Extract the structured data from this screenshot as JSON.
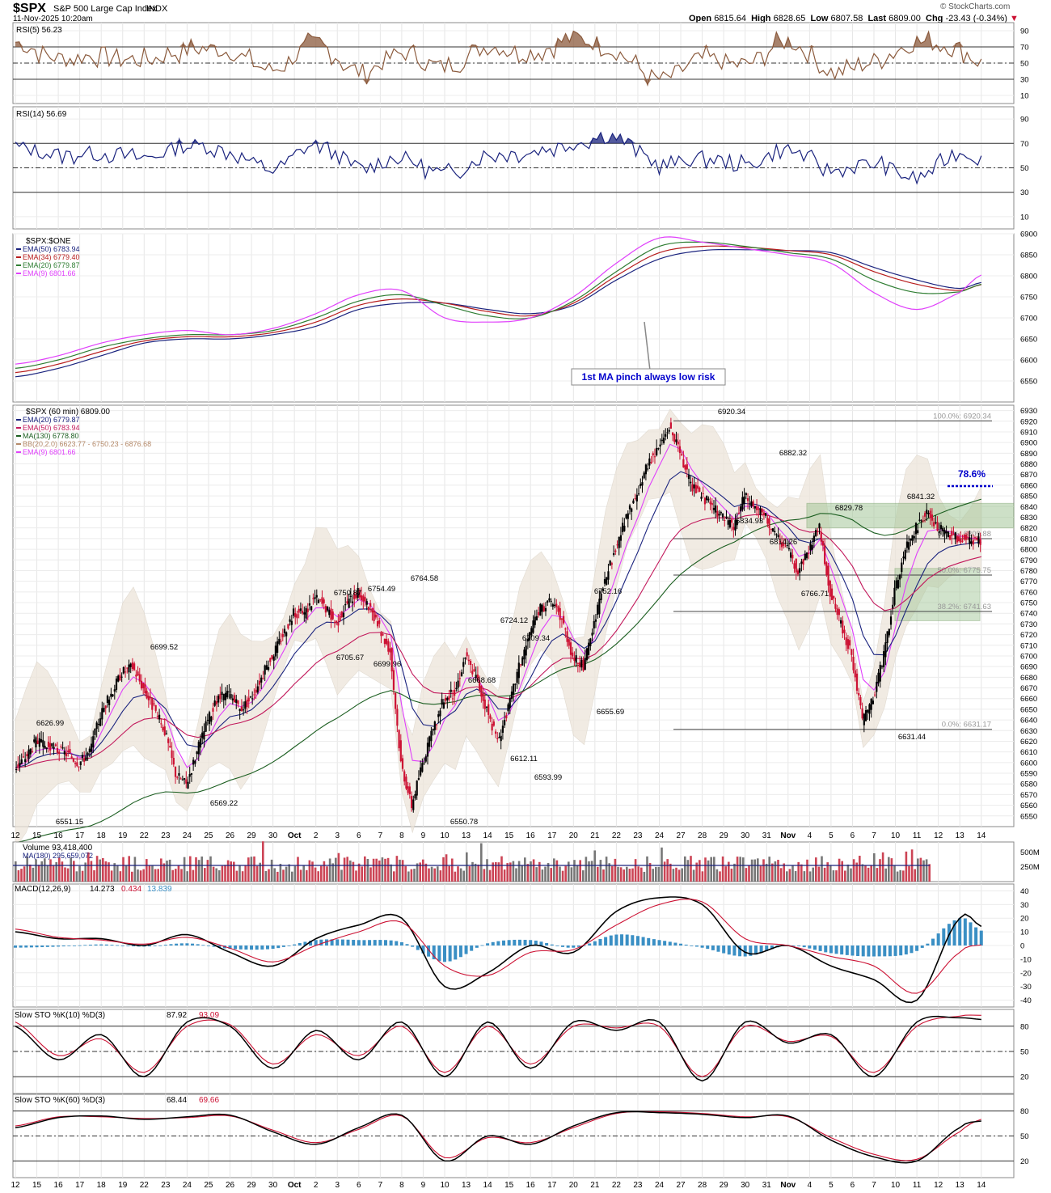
{
  "header": {
    "symbol": "$SPX",
    "name": "S&P 500 Large Cap Index",
    "exchange": "INDX",
    "date": "11-Nov-2025 10:20am",
    "brand": "© StockCharts.com",
    "open_label": "Open",
    "open": "6815.64",
    "high_label": "High",
    "high": "6828.65",
    "low_label": "Low",
    "low": "6807.58",
    "last_label": "Last",
    "last": "6809.00",
    "chg_label": "Chg",
    "chg": "-23.43 (-0.34%)"
  },
  "colors": {
    "candle_up": "#000000",
    "candle_down": "#cc1133",
    "ema20": "#1a237e",
    "ema50": "#c2185b",
    "ma130": "#1b5e20",
    "ema9": "#e040fb",
    "ema34": "#b71c1c",
    "ema20_green": "#2e7d32",
    "rsi5": "#8b5a3c",
    "rsi14": "#1a237e",
    "macd_hist": "#3a8fc4",
    "bb_fill": "#ede5da",
    "fib_box": "#a5c89a",
    "fib_text": "#999999",
    "annotation": "#0000cc"
  },
  "x_labels": [
    "12",
    "15",
    "16",
    "17",
    "18",
    "19",
    "22",
    "23",
    "24",
    "25",
    "26",
    "29",
    "30",
    "Oct",
    "2",
    "3",
    "6",
    "7",
    "8",
    "9",
    "10",
    "13",
    "14",
    "15",
    "16",
    "17",
    "20",
    "21",
    "22",
    "23",
    "24",
    "27",
    "28",
    "29",
    "30",
    "31",
    "Nov",
    "4",
    "5",
    "6",
    "7",
    "10",
    "11",
    "12",
    "13",
    "14"
  ],
  "chart_data": [
    {
      "type": "line",
      "title": "RSI(5)",
      "value": "56.23",
      "ylim": [
        0,
        100
      ],
      "ticks": [
        10,
        30,
        50,
        70,
        90
      ],
      "reference_lines": [
        30,
        50,
        70
      ],
      "x": [
        0,
        2,
        4,
        6,
        8,
        10,
        12,
        14,
        16,
        18,
        20,
        22,
        24,
        26,
        28,
        30,
        32,
        34,
        36,
        38,
        40,
        42,
        44,
        45
      ],
      "values": [
        76,
        56,
        60,
        53,
        66,
        64,
        42,
        74,
        39,
        62,
        45,
        70,
        62,
        80,
        64,
        30,
        55,
        48,
        76,
        40,
        53,
        75,
        68,
        50
      ]
    },
    {
      "type": "line",
      "title": "RSI(14)",
      "value": "56.69",
      "ylim": [
        0,
        100
      ],
      "ticks": [
        10,
        30,
        50,
        70,
        90
      ],
      "reference_lines": [
        30,
        50,
        70
      ],
      "x": [
        0,
        2,
        4,
        6,
        8,
        10,
        12,
        14,
        16,
        18,
        20,
        22,
        24,
        26,
        28,
        30,
        32,
        34,
        36,
        38,
        40,
        42,
        44,
        45
      ],
      "values": [
        67,
        61,
        62,
        58,
        68,
        63,
        49,
        69,
        50,
        58,
        45,
        60,
        63,
        70,
        75,
        53,
        58,
        52,
        64,
        48,
        53,
        42,
        62,
        57
      ]
    },
    {
      "type": "line",
      "title": "$SPX:$ONE",
      "ylim": [
        6500,
        6900
      ],
      "ticks": [
        6550,
        6600,
        6650,
        6700,
        6750,
        6800,
        6850,
        6900
      ],
      "x": [
        0,
        2,
        4,
        6,
        8,
        10,
        12,
        14,
        16,
        18,
        20,
        22,
        24,
        26,
        28,
        30,
        32,
        34,
        36,
        38,
        40,
        42,
        44,
        45
      ],
      "series": [
        {
          "name": "EMA(50)",
          "value": "6783.94",
          "values": [
            6560,
            6580,
            6610,
            6640,
            6650,
            6650,
            6660,
            6680,
            6720,
            6735,
            6735,
            6720,
            6710,
            6730,
            6790,
            6840,
            6860,
            6862,
            6860,
            6855,
            6820,
            6790,
            6770,
            6784
          ]
        },
        {
          "name": "EMA(34)",
          "value": "6779.40",
          "values": [
            6570,
            6590,
            6620,
            6645,
            6655,
            6655,
            6665,
            6690,
            6730,
            6745,
            6735,
            6715,
            6705,
            6735,
            6800,
            6855,
            6870,
            6868,
            6860,
            6850,
            6810,
            6780,
            6765,
            6779
          ]
        },
        {
          "name": "EMA(20)",
          "value": "6779.87",
          "values": [
            6580,
            6600,
            6630,
            6650,
            6660,
            6660,
            6670,
            6700,
            6740,
            6755,
            6730,
            6705,
            6700,
            6740,
            6810,
            6870,
            6880,
            6870,
            6855,
            6840,
            6790,
            6760,
            6762,
            6780
          ]
        },
        {
          "name": "EMA(9)",
          "value": "6801.66",
          "values": [
            6590,
            6610,
            6640,
            6660,
            6670,
            6660,
            6675,
            6710,
            6755,
            6765,
            6700,
            6690,
            6700,
            6750,
            6830,
            6890,
            6880,
            6865,
            6850,
            6830,
            6760,
            6720,
            6760,
            6802
          ]
        }
      ],
      "annotation": "1st MA pinch always low risk"
    },
    {
      "type": "candlestick",
      "title": "$SPX (60 min)",
      "value": "6809.00",
      "ylim": [
        6540,
        6935
      ],
      "ticks": [
        6550,
        6560,
        6570,
        6580,
        6590,
        6600,
        6610,
        6620,
        6630,
        6640,
        6650,
        6660,
        6670,
        6680,
        6690,
        6700,
        6710,
        6720,
        6730,
        6740,
        6750,
        6760,
        6770,
        6780,
        6790,
        6800,
        6810,
        6820,
        6830,
        6840,
        6850,
        6860,
        6870,
        6880,
        6890,
        6900,
        6910,
        6920,
        6930
      ],
      "legend": [
        {
          "name": "EMA(20)",
          "value": "6779.87"
        },
        {
          "name": "EMA(50)",
          "value": "6783.94"
        },
        {
          "name": "MA(130)",
          "value": "6778.80"
        },
        {
          "name": "BB(20,2.0)",
          "value": "6623.77 - 6750.23 - 6876.68"
        },
        {
          "name": "EMA(9)",
          "value": "6801.66"
        }
      ],
      "x": [
        0,
        0.5,
        1,
        1.5,
        2,
        2.5,
        3,
        3.5,
        4,
        4.5,
        5,
        5.5,
        6,
        6.5,
        7,
        7.5,
        8,
        8.5,
        9,
        9.5,
        10,
        10.5,
        11,
        11.5,
        12,
        12.5,
        13,
        13.5,
        14,
        14.5,
        15,
        15.5,
        16,
        16.5,
        17,
        17.5,
        18,
        18.5,
        19,
        19.5,
        20,
        20.5,
        21,
        21.5,
        22,
        22.5,
        23,
        23.5,
        24,
        24.5,
        25,
        25.5,
        26,
        26.5,
        27,
        27.5,
        28,
        28.5,
        29,
        29.5,
        30,
        30.5,
        31,
        31.5,
        32,
        32.5,
        33,
        33.5,
        34,
        34.5,
        35,
        35.5,
        36,
        36.5,
        37,
        37.5,
        38,
        38.5,
        39,
        39.5,
        40,
        40.5,
        41,
        41.5,
        42,
        42.5,
        43,
        43.5,
        44,
        44.5,
        45
      ],
      "close": [
        6595,
        6605,
        6620,
        6615,
        6612,
        6608,
        6600,
        6610,
        6645,
        6665,
        6685,
        6690,
        6670,
        6650,
        6630,
        6590,
        6580,
        6610,
        6640,
        6660,
        6665,
        6650,
        6660,
        6680,
        6700,
        6720,
        6740,
        6740,
        6755,
        6745,
        6730,
        6750,
        6760,
        6745,
        6725,
        6705,
        6600,
        6560,
        6600,
        6630,
        6660,
        6665,
        6700,
        6680,
        6650,
        6620,
        6650,
        6690,
        6720,
        6745,
        6750,
        6735,
        6700,
        6690,
        6730,
        6770,
        6800,
        6830,
        6850,
        6880,
        6895,
        6915,
        6890,
        6860,
        6850,
        6840,
        6830,
        6820,
        6850,
        6840,
        6830,
        6810,
        6800,
        6780,
        6800,
        6820,
        6760,
        6730,
        6700,
        6640,
        6660,
        6700,
        6760,
        6800,
        6820,
        6834,
        6820,
        6815,
        6809,
        6809,
        6809
      ],
      "highs": [
        {
          "label": "6626.99"
        },
        {
          "label": "6699.52"
        },
        {
          "label": "6750.87"
        },
        {
          "label": "6754.49"
        },
        {
          "label": "6764.58"
        },
        {
          "label": "6724.12"
        },
        {
          "label": "6709.34"
        },
        {
          "label": "6752.16"
        },
        {
          "label": "6920.34"
        },
        {
          "label": "6882.32"
        },
        {
          "label": "6829.78"
        },
        {
          "label": "6841.32"
        }
      ],
      "lows": [
        {
          "label": "6551.15"
        },
        {
          "label": "6569.22"
        },
        {
          "label": "6705.67"
        },
        {
          "label": "6699.96"
        },
        {
          "label": "6550.78"
        },
        {
          "label": "6668.68"
        },
        {
          "label": "6612.11"
        },
        {
          "label": "6593.99"
        },
        {
          "label": "6655.69"
        },
        {
          "label": "6834.93"
        },
        {
          "label": "6814.26"
        },
        {
          "label": "6766.71"
        },
        {
          "label": "6631.44"
        }
      ],
      "fib": [
        {
          "label": "100.0%: 6920.34",
          "value": 6920.34
        },
        {
          "label": "61.8%: 6809.88",
          "value": 6809.88
        },
        {
          "label": "50.0%: 6775.75",
          "value": 6775.75
        },
        {
          "label": "38.2%: 6741.63",
          "value": 6741.63
        },
        {
          "label": "0.0%: 6631.17",
          "value": 6631.17
        }
      ],
      "fib_target": "78.6%"
    },
    {
      "type": "bar",
      "title": "Volume",
      "value": "93,418,400",
      "ma_label": "MA(180)",
      "ma_value": "295,659,072",
      "ticks": [
        "250M",
        "500M"
      ]
    },
    {
      "type": "line",
      "title": "MACD(12,26,9)",
      "values_text": [
        "14.273",
        "0.434",
        "13.839"
      ],
      "ylim": [
        -45,
        45
      ],
      "ticks": [
        -40,
        -30,
        -20,
        -10,
        0,
        10,
        20,
        30,
        40
      ],
      "x": [
        0,
        2,
        4,
        6,
        8,
        10,
        12,
        14,
        16,
        18,
        20,
        22,
        24,
        26,
        28,
        30,
        32,
        34,
        36,
        38,
        40,
        42,
        44,
        45
      ],
      "series": [
        {
          "name": "MACD",
          "values": [
            10,
            5,
            5,
            0,
            8,
            -5,
            -15,
            5,
            15,
            20,
            -30,
            -20,
            0,
            -5,
            25,
            35,
            30,
            -5,
            0,
            -15,
            -25,
            -40,
            20,
            14
          ]
        },
        {
          "name": "Signal",
          "values": [
            12,
            6,
            4,
            1,
            6,
            -2,
            -12,
            0,
            10,
            17,
            -15,
            -22,
            -5,
            -3,
            15,
            30,
            32,
            5,
            0,
            -8,
            -15,
            -35,
            -5,
            0.4
          ]
        }
      ]
    },
    {
      "type": "line",
      "title": "Slow STO %K(10) %D(3)",
      "values_text": [
        "87.92",
        "93.09"
      ],
      "ylim": [
        0,
        100
      ],
      "ticks": [
        20,
        50,
        80
      ],
      "reference_lines": [
        20,
        50,
        80
      ],
      "x": [
        0,
        2,
        4,
        6,
        8,
        10,
        12,
        14,
        16,
        18,
        20,
        22,
        24,
        26,
        28,
        30,
        32,
        34,
        36,
        38,
        40,
        42,
        44,
        45
      ],
      "series": [
        {
          "name": "%K",
          "values": [
            80,
            40,
            70,
            20,
            85,
            80,
            30,
            75,
            40,
            85,
            20,
            85,
            30,
            85,
            75,
            85,
            15,
            85,
            60,
            70,
            20,
            85,
            90,
            88
          ]
        },
        {
          "name": "%D",
          "values": [
            85,
            45,
            65,
            25,
            80,
            82,
            35,
            70,
            45,
            80,
            25,
            80,
            35,
            80,
            78,
            80,
            20,
            80,
            62,
            68,
            25,
            80,
            92,
            93
          ]
        }
      ]
    },
    {
      "type": "line",
      "title": "Slow STO %K(60) %D(3)",
      "values_text": [
        "68.44",
        "69.66"
      ],
      "ylim": [
        0,
        100
      ],
      "ticks": [
        20,
        50,
        80
      ],
      "reference_lines": [
        20,
        50,
        80
      ],
      "x": [
        0,
        2,
        4,
        6,
        8,
        10,
        12,
        14,
        16,
        18,
        20,
        22,
        24,
        26,
        28,
        30,
        32,
        34,
        36,
        38,
        40,
        42,
        44,
        45
      ],
      "series": [
        {
          "name": "%K",
          "values": [
            60,
            72,
            74,
            70,
            73,
            75,
            55,
            40,
            60,
            75,
            20,
            50,
            40,
            62,
            78,
            78,
            76,
            72,
            74,
            45,
            25,
            20,
            60,
            68
          ]
        },
        {
          "name": "%D",
          "values": [
            62,
            73,
            73,
            71,
            72,
            74,
            57,
            42,
            58,
            74,
            24,
            48,
            42,
            60,
            77,
            79,
            77,
            73,
            73,
            48,
            28,
            22,
            55,
            70
          ]
        }
      ]
    }
  ]
}
